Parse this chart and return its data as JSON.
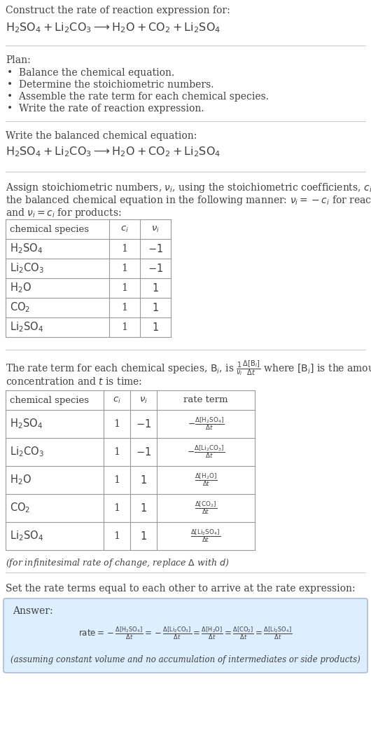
{
  "title_line1": "Construct the rate of reaction expression for:",
  "title_line2_latex": "$\\mathrm{H_2SO_4 + Li_2CO_3 \\longrightarrow H_2O + CO_2 + Li_2SO_4}$",
  "plan_header": "Plan:",
  "plan_items": [
    "\\bullet  Balance the chemical equation.",
    "\\bullet  Determine the stoichiometric numbers.",
    "\\bullet  Assemble the rate term for each chemical species.",
    "\\bullet  Write the rate of reaction expression."
  ],
  "balanced_header": "Write the balanced chemical equation:",
  "balanced_eq_latex": "$\\mathrm{H_2SO_4 + Li_2CO_3 \\longrightarrow H_2O + CO_2 + Li_2SO_4}$",
  "stoich_text1": "Assign stoichiometric numbers, $\\nu_i$, using the stoichiometric coefficients, $c_i$, from",
  "stoich_text2": "the balanced chemical equation in the following manner: $\\nu_i = -c_i$ for reactants",
  "stoich_text3": "and $\\nu_i = c_i$ for products:",
  "table1_headers": [
    "chemical species",
    "$c_i$",
    "$\\nu_i$"
  ],
  "table1_rows": [
    [
      "$\\mathrm{H_2SO_4}$",
      "1",
      "$-1$"
    ],
    [
      "$\\mathrm{Li_2CO_3}$",
      "1",
      "$-1$"
    ],
    [
      "$\\mathrm{H_2O}$",
      "1",
      "$1$"
    ],
    [
      "$\\mathrm{CO_2}$",
      "1",
      "$1$"
    ],
    [
      "$\\mathrm{Li_2SO_4}$",
      "1",
      "$1$"
    ]
  ],
  "rate_text1": "The rate term for each chemical species, $\\mathrm{B}_i$, is $\\frac{1}{\\nu_i}\\frac{\\Delta[\\mathrm{B}_i]}{\\Delta t}$ where $[\\mathrm{B}_i]$ is the amount",
  "rate_text2": "concentration and $t$ is time:",
  "table2_headers": [
    "chemical species",
    "$c_i$",
    "$\\nu_i$",
    "rate term"
  ],
  "table2_rows": [
    [
      "$\\mathrm{H_2SO_4}$",
      "1",
      "$-1$",
      "$-\\frac{\\Delta[\\mathrm{H_2SO_4}]}{\\Delta t}$"
    ],
    [
      "$\\mathrm{Li_2CO_3}$",
      "1",
      "$-1$",
      "$-\\frac{\\Delta[\\mathrm{Li_2CO_3}]}{\\Delta t}$"
    ],
    [
      "$\\mathrm{H_2O}$",
      "1",
      "$1$",
      "$\\frac{\\Delta[\\mathrm{H_2O}]}{\\Delta t}$"
    ],
    [
      "$\\mathrm{CO_2}$",
      "1",
      "$1$",
      "$\\frac{\\Delta[\\mathrm{CO_2}]}{\\Delta t}$"
    ],
    [
      "$\\mathrm{Li_2SO_4}$",
      "1",
      "$1$",
      "$\\frac{\\Delta[\\mathrm{Li_2SO_4}]}{\\Delta t}$"
    ]
  ],
  "infinitesimal_note": "(for infinitesimal rate of change, replace $\\Delta$ with $d$)",
  "set_equal_text": "Set the rate terms equal to each other to arrive at the rate expression:",
  "answer_label": "Answer:",
  "answer_note": "(assuming constant volume and no accumulation of intermediates or side products)",
  "bg_color": "#ffffff",
  "text_color": "#404040",
  "table_line_color": "#999999",
  "answer_bg": "#ddeeff",
  "answer_border": "#aabbdd",
  "sep_line_color": "#cccccc"
}
